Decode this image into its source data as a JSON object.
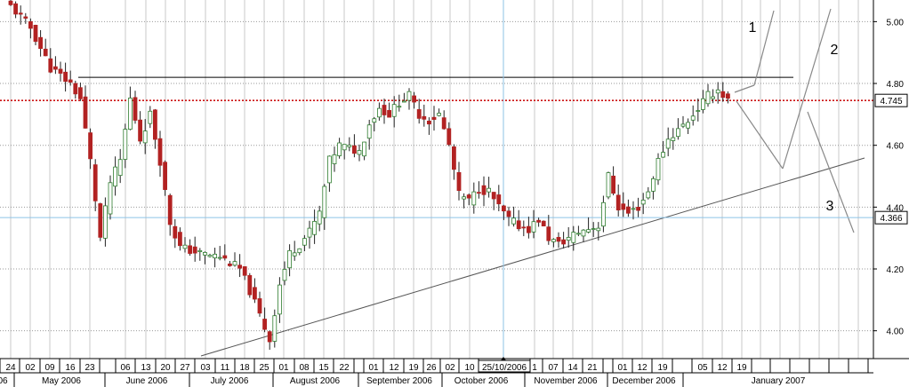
{
  "chart_data": {
    "type": "candlestick",
    "title": "",
    "xlabel": "",
    "ylabel": "",
    "ylim": [
      3.91,
      5.07
    ],
    "grid": true,
    "y_ticks": [
      "4.00",
      "4.20",
      "4.40",
      "4.60",
      "4.80",
      "5.00"
    ],
    "price_labels": [
      {
        "value": 4.745,
        "text": "4.745"
      },
      {
        "value": 4.366,
        "text": "4.366"
      }
    ],
    "cursor_date_label": "25/10/2006",
    "x_day_labels": [
      "24",
      "02",
      "09",
      "16",
      "23",
      "06",
      "13",
      "20",
      "27",
      "03",
      "11",
      "18",
      "25",
      "01",
      "08",
      "15",
      "22",
      "01",
      "12",
      "19",
      "26",
      "02",
      "10",
      "25/10/2006",
      "1",
      "07",
      "14",
      "21",
      "01",
      "12",
      "19",
      "05",
      "12",
      "19"
    ],
    "x_month_labels": [
      {
        "text": "06"
      },
      {
        "text": "May 2006"
      },
      {
        "text": "June 2006"
      },
      {
        "text": "July 2006"
      },
      {
        "text": "August 2006"
      },
      {
        "text": "September 2006"
      },
      {
        "text": "October 2006"
      },
      {
        "text": "November 2006"
      },
      {
        "text": "December 2006"
      },
      {
        "text": "January 2007"
      }
    ],
    "annotations": [
      "1",
      "2",
      "3"
    ],
    "lines": {
      "resistance": 4.82,
      "current": 4.745,
      "cursor_price": 4.366
    },
    "colors": {
      "up": "#2f7d2f",
      "down": "#b22222",
      "current_line": "#cc1111",
      "cursor_line": "#8ec3e6",
      "grid": "#c8c8c8"
    },
    "anchors": [
      [
        0,
        5.05
      ],
      [
        4,
        4.98
      ],
      [
        8,
        4.85
      ],
      [
        12,
        4.8
      ],
      [
        14,
        4.75
      ],
      [
        16,
        4.55
      ],
      [
        18,
        4.3
      ],
      [
        20,
        4.48
      ],
      [
        22,
        4.55
      ],
      [
        24,
        4.75
      ],
      [
        26,
        4.62
      ],
      [
        28,
        4.7
      ],
      [
        30,
        4.55
      ],
      [
        32,
        4.35
      ],
      [
        34,
        4.27
      ],
      [
        38,
        4.25
      ],
      [
        42,
        4.24
      ],
      [
        46,
        4.2
      ],
      [
        48,
        4.13
      ],
      [
        50,
        4.05
      ],
      [
        52,
        3.97
      ],
      [
        54,
        4.15
      ],
      [
        56,
        4.25
      ],
      [
        58,
        4.28
      ],
      [
        60,
        4.32
      ],
      [
        62,
        4.38
      ],
      [
        64,
        4.55
      ],
      [
        66,
        4.6
      ],
      [
        70,
        4.58
      ],
      [
        72,
        4.67
      ],
      [
        74,
        4.72
      ],
      [
        76,
        4.7
      ],
      [
        78,
        4.74
      ],
      [
        80,
        4.76
      ],
      [
        82,
        4.7
      ],
      [
        84,
        4.68
      ],
      [
        86,
        4.7
      ],
      [
        88,
        4.6
      ],
      [
        90,
        4.44
      ],
      [
        92,
        4.42
      ],
      [
        94,
        4.46
      ],
      [
        96,
        4.45
      ],
      [
        98,
        4.4
      ],
      [
        100,
        4.36
      ],
      [
        102,
        4.34
      ],
      [
        104,
        4.33
      ],
      [
        106,
        4.36
      ],
      [
        108,
        4.3
      ],
      [
        110,
        4.28
      ],
      [
        112,
        4.3
      ],
      [
        114,
        4.32
      ],
      [
        116,
        4.33
      ],
      [
        118,
        4.34
      ],
      [
        120,
        4.5
      ],
      [
        122,
        4.4
      ],
      [
        124,
        4.38
      ],
      [
        126,
        4.4
      ],
      [
        128,
        4.45
      ],
      [
        130,
        4.55
      ],
      [
        132,
        4.62
      ],
      [
        134,
        4.65
      ],
      [
        136,
        4.68
      ],
      [
        138,
        4.72
      ],
      [
        140,
        4.76
      ],
      [
        142,
        4.78
      ],
      [
        144,
        4.745
      ]
    ]
  }
}
